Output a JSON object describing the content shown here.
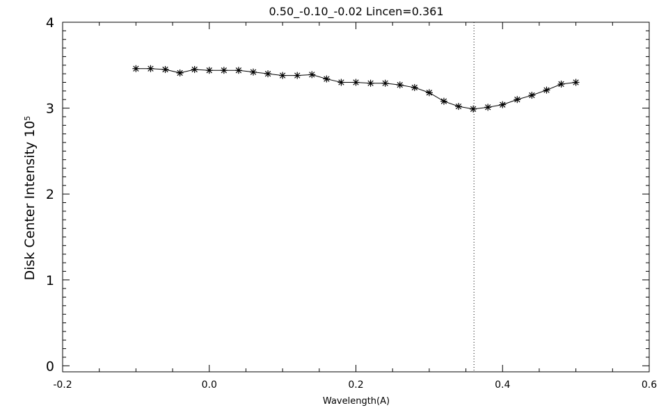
{
  "chart_data": {
    "type": "line",
    "title": "0.50_-0.10_-0.02   Lincen=0.361",
    "xlabel": "Wavelength(A)",
    "ylabel_main": "Disk Center Intensity 10",
    "ylabel_exponent": "5",
    "xlim": [
      -0.2,
      0.6
    ],
    "ylim": [
      -0.07,
      4.0
    ],
    "x_ticks": [
      -0.2,
      0.0,
      0.2,
      0.4,
      0.6
    ],
    "x_tick_labels": [
      "-0.2",
      "0.0",
      "0.2",
      "0.4",
      "0.6"
    ],
    "y_ticks": [
      0,
      1,
      2,
      3,
      4
    ],
    "y_tick_labels": [
      "0",
      "1",
      "2",
      "3",
      "4"
    ],
    "vertical_line_x": 0.361,
    "marker": "asterisk",
    "grid": false,
    "series": [
      {
        "x": [
          -0.1,
          -0.08,
          -0.06,
          -0.04,
          -0.02,
          0.0,
          0.02,
          0.04,
          0.06,
          0.08,
          0.1,
          0.12,
          0.14,
          0.16,
          0.18,
          0.2,
          0.22,
          0.24,
          0.26,
          0.28,
          0.3,
          0.32,
          0.34,
          0.36,
          0.38,
          0.4,
          0.42,
          0.44,
          0.46,
          0.48,
          0.5
        ],
        "y": [
          3.46,
          3.46,
          3.45,
          3.41,
          3.45,
          3.44,
          3.44,
          3.44,
          3.42,
          3.4,
          3.38,
          3.38,
          3.39,
          3.34,
          3.3,
          3.3,
          3.29,
          3.29,
          3.27,
          3.24,
          3.18,
          3.08,
          3.02,
          2.99,
          3.01,
          3.04,
          3.1,
          3.15,
          3.21,
          3.28,
          3.3
        ]
      }
    ]
  }
}
